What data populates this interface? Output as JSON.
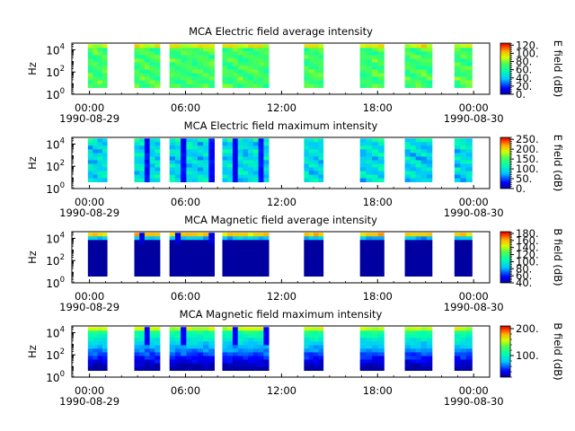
{
  "figure": {
    "xticks": [
      "00:00",
      "06:00",
      "12:00",
      "18:00",
      "00:00"
    ],
    "x_hours": [
      0,
      6,
      12,
      18,
      24
    ],
    "date_start": "1990-08-29",
    "date_end": "1990-08-30"
  },
  "chart_data": [
    {
      "type": "heatmap",
      "title": "MCA  Electric field average intensity",
      "ylabel": "Hz",
      "colorbar_label": "E field (dB)",
      "colorbar_ticks": [
        "0.",
        "20.",
        "40.",
        "60.",
        "80.",
        "100.",
        "120."
      ],
      "colorbar_range": [
        0,
        125
      ],
      "ylim_log10": [
        0,
        4.6
      ],
      "yticks": [
        "10",
        "10",
        "10"
      ],
      "ytick_exp": [
        "0",
        "2",
        "4"
      ],
      "data_hours": [
        [
          -0.1,
          1.1
        ],
        [
          2.8,
          4.4
        ],
        [
          5.0,
          7.8
        ],
        [
          8.3,
          11.2
        ],
        [
          13.4,
          14.6
        ],
        [
          16.9,
          18.4
        ],
        [
          19.7,
          21.4
        ],
        [
          22.8,
          23.9
        ]
      ],
      "freq_log10_range": [
        0.6,
        4.5
      ]
    },
    {
      "type": "heatmap",
      "title": "MCA  Electric field maximum intensity",
      "ylabel": "Hz",
      "colorbar_label": "E field (dB)",
      "colorbar_ticks": [
        "0.",
        "50.",
        "100.",
        "150.",
        "200.",
        "250."
      ],
      "colorbar_range": [
        0,
        260
      ],
      "ylim_log10": [
        0,
        4.6
      ],
      "yticks": [
        "10",
        "10",
        "10"
      ],
      "ytick_exp": [
        "0",
        "2",
        "4"
      ],
      "data_hours": [
        [
          -0.1,
          1.1
        ],
        [
          2.8,
          4.4
        ],
        [
          5.0,
          7.8
        ],
        [
          8.3,
          11.2
        ],
        [
          13.4,
          14.6
        ],
        [
          16.9,
          18.4
        ],
        [
          19.7,
          21.4
        ],
        [
          22.8,
          23.9
        ]
      ],
      "freq_log10_range": [
        0.6,
        4.5
      ]
    },
    {
      "type": "heatmap",
      "title": "MCA  Magnetic field average intensity",
      "ylabel": "Hz",
      "colorbar_label": "B field (dB)",
      "colorbar_ticks": [
        "40.",
        "60.",
        "80.",
        "100.",
        "120.",
        "140.",
        "160.",
        "180."
      ],
      "colorbar_range": [
        40,
        185
      ],
      "ylim_log10": [
        0,
        4.6
      ],
      "yticks": [
        "10",
        "10",
        "10"
      ],
      "ytick_exp": [
        "0",
        "2",
        "4"
      ],
      "data_hours": [
        [
          -0.1,
          1.1
        ],
        [
          2.8,
          4.4
        ],
        [
          5.0,
          7.8
        ],
        [
          8.3,
          11.2
        ],
        [
          13.4,
          14.6
        ],
        [
          16.9,
          18.4
        ],
        [
          19.7,
          21.4
        ],
        [
          22.8,
          23.9
        ]
      ],
      "freq_log10_range": [
        0.6,
        4.5
      ]
    },
    {
      "type": "heatmap",
      "title": "MCA  Magnetic field maximum intensity",
      "ylabel": "Hz",
      "colorbar_label": "B field (dB)",
      "colorbar_ticks": [
        "100.",
        "200."
      ],
      "colorbar_range": [
        20,
        210
      ],
      "ylim_log10": [
        0,
        4.6
      ],
      "yticks": [
        "10",
        "10",
        "10"
      ],
      "ytick_exp": [
        "0",
        "2",
        "4"
      ],
      "data_hours": [
        [
          -0.1,
          1.1
        ],
        [
          2.8,
          4.4
        ],
        [
          5.0,
          7.8
        ],
        [
          8.3,
          11.2
        ],
        [
          13.4,
          14.6
        ],
        [
          16.9,
          18.4
        ],
        [
          19.7,
          21.4
        ],
        [
          22.8,
          23.9
        ]
      ],
      "freq_log10_range": [
        0.6,
        4.5
      ]
    }
  ]
}
